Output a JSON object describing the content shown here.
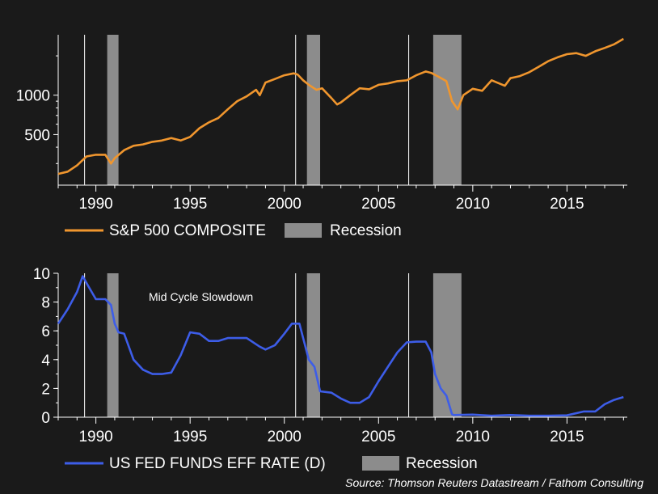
{
  "colors": {
    "background": "#1a1a1a",
    "sp500_line": "#f0962e",
    "fed_line": "#3d5de8",
    "recession": "#8c8c8c",
    "axis": "#ffffff",
    "marker": "#ffffff"
  },
  "source": "Source: Thomson Reuters Datastream / Fathom Consulting",
  "chart_data": [
    {
      "type": "line",
      "title": "",
      "xlabel": "",
      "ylabel": "",
      "xlim": [
        1988.0,
        2018.2
      ],
      "yscale": "log",
      "ylim": [
        205,
        2900
      ],
      "x_ticks": [
        1990,
        1995,
        2000,
        2005,
        2010,
        2015
      ],
      "x_tick_labels": [
        "1990",
        "1995",
        "2000",
        "2005",
        "2010",
        "2015"
      ],
      "y_ticks": [
        500,
        1000
      ],
      "y_tick_labels": [
        "500",
        "1000"
      ],
      "legend": [
        "S&P 500 COMPOSITE",
        "Recession"
      ],
      "recessions": [
        [
          1990.6,
          1991.2
        ],
        [
          2001.2,
          2001.9
        ],
        [
          2007.9,
          2009.4
        ]
      ],
      "markers": [
        1989.4,
        2000.6,
        2006.6
      ],
      "series": [
        {
          "name": "S&P 500 COMPOSITE",
          "x": [
            1988.0,
            1988.5,
            1989.0,
            1989.5,
            1990.0,
            1990.5,
            1990.8,
            1991.0,
            1991.5,
            1992.0,
            1992.5,
            1993.0,
            1993.5,
            1994.0,
            1994.5,
            1995.0,
            1995.5,
            1996.0,
            1996.5,
            1997.0,
            1997.5,
            1998.0,
            1998.5,
            1998.7,
            1999.0,
            1999.5,
            2000.0,
            2000.5,
            2000.7,
            2001.0,
            2001.3,
            2001.7,
            2002.0,
            2002.5,
            2002.8,
            2003.0,
            2003.5,
            2004.0,
            2004.5,
            2005.0,
            2005.5,
            2006.0,
            2006.5,
            2007.0,
            2007.5,
            2007.8,
            2008.2,
            2008.6,
            2008.9,
            2009.2,
            2009.5,
            2010.0,
            2010.5,
            2011.0,
            2011.7,
            2012.0,
            2012.5,
            2013.0,
            2013.5,
            2014.0,
            2014.5,
            2015.0,
            2015.5,
            2016.0,
            2016.5,
            2017.0,
            2017.5,
            2018.0
          ],
          "values": [
            250,
            260,
            290,
            340,
            350,
            350,
            300,
            330,
            380,
            410,
            420,
            440,
            450,
            470,
            450,
            480,
            560,
            620,
            670,
            780,
            900,
            980,
            1100,
            1000,
            1250,
            1330,
            1420,
            1470,
            1440,
            1300,
            1200,
            1100,
            1130,
            950,
            850,
            880,
            1000,
            1130,
            1110,
            1200,
            1230,
            1280,
            1300,
            1420,
            1520,
            1480,
            1380,
            1280,
            900,
            780,
            1000,
            1120,
            1080,
            1300,
            1180,
            1350,
            1400,
            1500,
            1650,
            1820,
            1950,
            2060,
            2100,
            2000,
            2170,
            2300,
            2450,
            2700
          ]
        }
      ]
    },
    {
      "type": "line",
      "title": "",
      "xlabel": "",
      "ylabel": "",
      "xlim": [
        1988.0,
        2018.2
      ],
      "ylim": [
        0,
        10
      ],
      "x_ticks": [
        1990,
        1995,
        2000,
        2005,
        2010,
        2015
      ],
      "x_tick_labels": [
        "1990",
        "1995",
        "2000",
        "2005",
        "2010",
        "2015"
      ],
      "y_ticks": [
        0,
        2,
        4,
        6,
        8,
        10
      ],
      "y_tick_labels": [
        "0",
        "2",
        "4",
        "6",
        "8",
        "10"
      ],
      "legend": [
        "US FED FUNDS EFF RATE (D)",
        "Recession"
      ],
      "annotation": "Mid Cycle Slowdown",
      "recessions": [
        [
          1990.6,
          1991.2
        ],
        [
          2001.2,
          2001.9
        ],
        [
          2007.9,
          2009.4
        ]
      ],
      "markers": [
        1989.4,
        2000.6,
        2006.6
      ],
      "series": [
        {
          "name": "US FED FUNDS EFF RATE (D)",
          "x": [
            1988.0,
            1988.5,
            1989.0,
            1989.3,
            1989.6,
            1990.0,
            1990.5,
            1990.8,
            1991.0,
            1991.2,
            1991.5,
            1992.0,
            1992.5,
            1993.0,
            1993.5,
            1994.0,
            1994.5,
            1995.0,
            1995.5,
            1996.0,
            1996.5,
            1997.0,
            1997.5,
            1998.0,
            1998.7,
            1999.0,
            1999.5,
            2000.0,
            2000.4,
            2000.8,
            2001.0,
            2001.3,
            2001.6,
            2001.9,
            2002.5,
            2003.0,
            2003.5,
            2004.0,
            2004.5,
            2005.0,
            2005.5,
            2006.0,
            2006.5,
            2007.0,
            2007.5,
            2007.8,
            2008.0,
            2008.3,
            2008.6,
            2008.9,
            2009.0,
            2010.0,
            2011.0,
            2012.0,
            2013.0,
            2014.0,
            2015.0,
            2015.9,
            2016.5,
            2017.0,
            2017.5,
            2018.0
          ],
          "values": [
            6.5,
            7.5,
            8.7,
            9.8,
            9.1,
            8.2,
            8.2,
            7.8,
            6.5,
            5.9,
            5.8,
            4.0,
            3.3,
            3.0,
            3.0,
            3.1,
            4.3,
            5.9,
            5.8,
            5.3,
            5.3,
            5.5,
            5.5,
            5.5,
            4.9,
            4.7,
            5.0,
            5.8,
            6.5,
            6.5,
            5.5,
            4.0,
            3.5,
            1.8,
            1.7,
            1.3,
            1.0,
            1.0,
            1.4,
            2.5,
            3.5,
            4.5,
            5.2,
            5.25,
            5.25,
            4.5,
            3.0,
            2.0,
            1.5,
            0.2,
            0.15,
            0.18,
            0.1,
            0.15,
            0.1,
            0.1,
            0.13,
            0.4,
            0.4,
            0.9,
            1.2,
            1.4
          ]
        }
      ]
    }
  ]
}
